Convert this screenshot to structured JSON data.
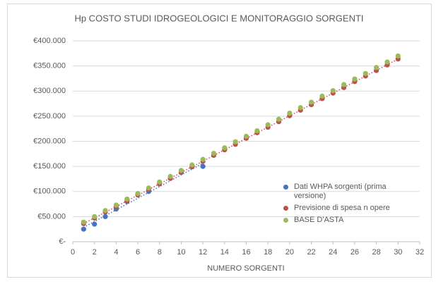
{
  "chart_data": {
    "type": "scatter",
    "title": "Hp COSTO STUDI IDROGEOLOGICI E MONITORAGGIO SORGENTI",
    "xlabel": "NUMERO SORGENTI",
    "xlim": [
      0,
      32
    ],
    "xticks": [
      0,
      2,
      4,
      6,
      8,
      10,
      12,
      14,
      16,
      18,
      20,
      22,
      24,
      26,
      28,
      30,
      32
    ],
    "ylim": [
      0,
      400000
    ],
    "yticks": [
      {
        "value": 0,
        "label": "€-"
      },
      {
        "value": 50000,
        "label": "€50.000"
      },
      {
        "value": 100000,
        "label": "€100.000"
      },
      {
        "value": 150000,
        "label": "€150.000"
      },
      {
        "value": 200000,
        "label": "€200.000"
      },
      {
        "value": 250000,
        "label": "€250.000"
      },
      {
        "value": 300000,
        "label": "€300.000"
      },
      {
        "value": 350000,
        "label": "€350.000"
      },
      {
        "value": 400000,
        "label": "€400.000"
      }
    ],
    "grid": true,
    "legend": "right",
    "series": [
      {
        "name": "Dati WHPA sorgenti (prima versione)",
        "color": "#4472c4",
        "trendline": true,
        "x": [
          1,
          2,
          3,
          4,
          5,
          6,
          7,
          12
        ],
        "values": [
          25000,
          35000,
          50000,
          65000,
          80000,
          95000,
          100000,
          150000
        ]
      },
      {
        "name": "Previsione di spesa n opere",
        "color": "#c0504d",
        "trendline": true,
        "x": [
          1,
          2,
          3,
          4,
          5,
          6,
          7,
          8,
          9,
          10,
          11,
          12,
          13,
          14,
          15,
          16,
          17,
          18,
          19,
          20,
          21,
          22,
          23,
          24,
          25,
          26,
          27,
          28,
          29,
          30
        ],
        "values": [
          36000,
          47000,
          59000,
          70000,
          81000,
          93000,
          104000,
          115000,
          126000,
          138000,
          149000,
          160000,
          172000,
          183000,
          194000,
          206000,
          217000,
          228000,
          239000,
          251000,
          262000,
          273000,
          285000,
          296000,
          307000,
          319000,
          330000,
          341000,
          352000,
          364000
        ]
      },
      {
        "name": "BASE D'ASTA",
        "color": "#9bbb59",
        "trendline": false,
        "x": [
          1,
          2,
          3,
          4,
          5,
          6,
          7,
          8,
          9,
          10,
          11,
          12,
          13,
          14,
          15,
          16,
          17,
          18,
          19,
          20,
          21,
          22,
          23,
          24,
          25,
          26,
          27,
          28,
          29,
          30
        ],
        "values": [
          39000,
          50000,
          62000,
          73000,
          85000,
          96000,
          107000,
          119000,
          130000,
          142000,
          153000,
          164000,
          176000,
          187000,
          199000,
          210000,
          221000,
          233000,
          244000,
          256000,
          267000,
          278000,
          290000,
          301000,
          313000,
          324000,
          335000,
          347000,
          358000,
          370000
        ]
      }
    ]
  }
}
